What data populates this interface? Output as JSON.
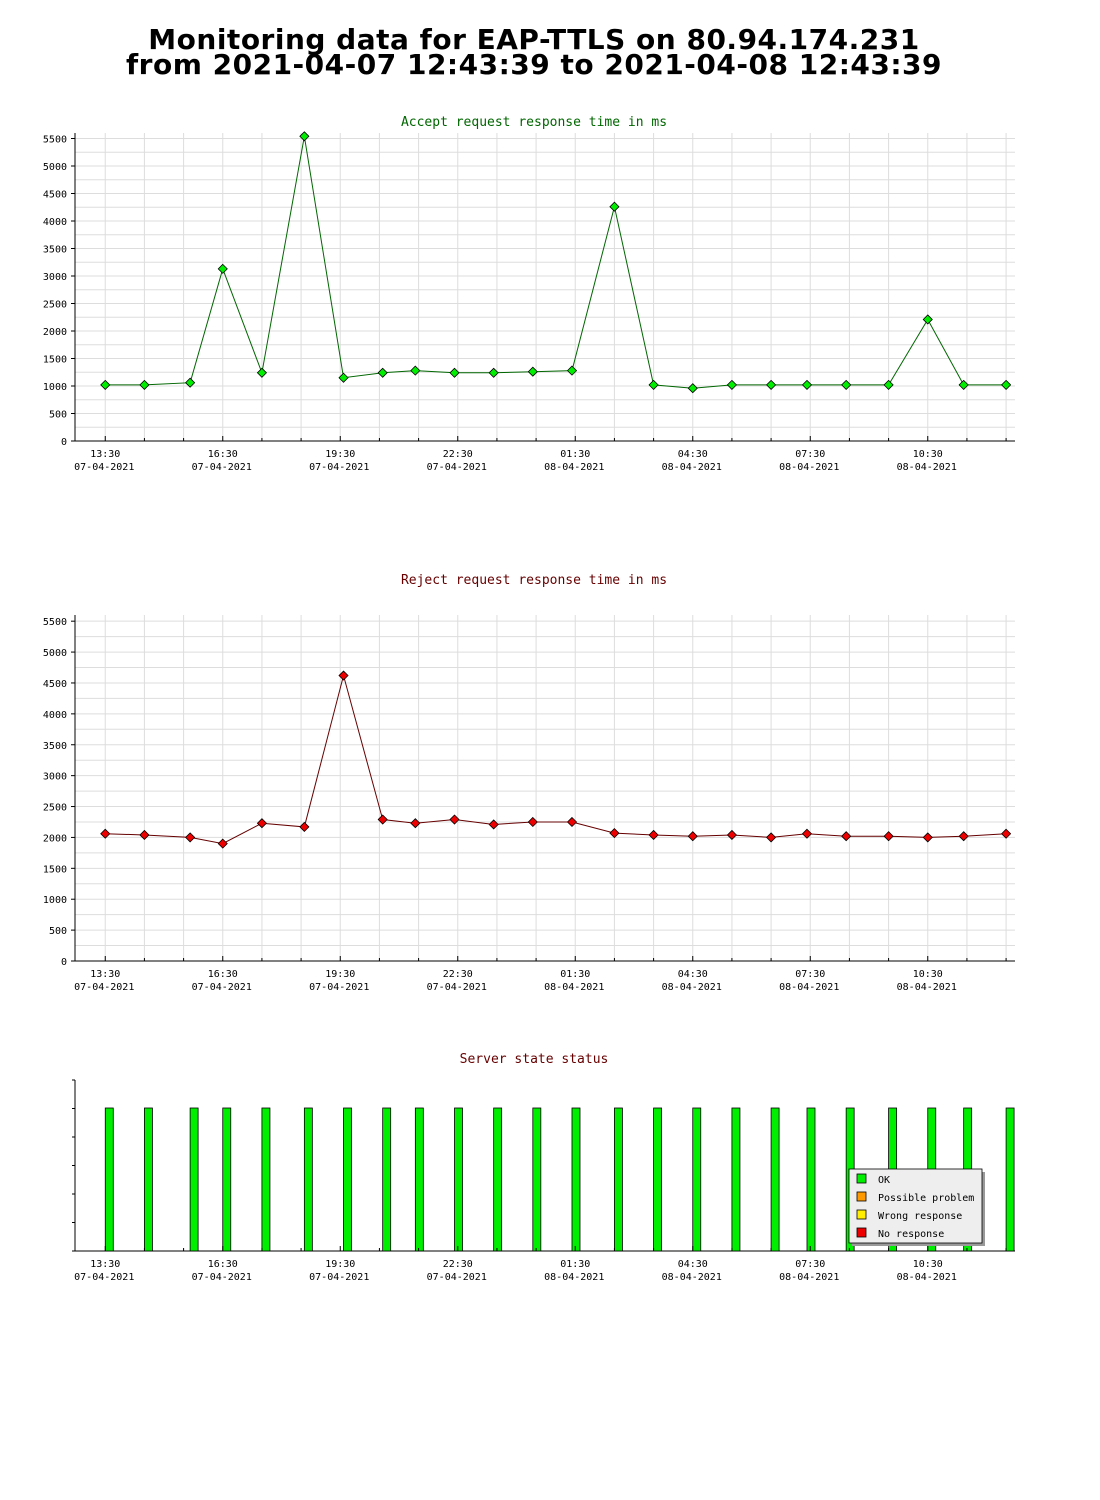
{
  "page": {
    "title_line_1": "Monitoring data for EAP-TTLS on 80.94.174.231",
    "title_line_2": "from 2021-04-07 12:43:39 to 2021-04-08 12:43:39"
  },
  "colors": {
    "accept_title": "#006600",
    "reject_title": "#660000",
    "status_title": "#660000",
    "accept_line": "#006600",
    "accept_marker": "#00ee00",
    "reject_line": "#660000",
    "reject_marker": "#ee0000",
    "grid": "#dddddd",
    "ok": "#00ee00",
    "possible_problem": "#ff9900",
    "wrong_response": "#ffee00",
    "no_response": "#ee0000"
  },
  "chart_data": [
    {
      "type": "line",
      "title": "Accept request response time in ms",
      "ylim": [
        0,
        5600
      ],
      "y_ticks": [
        0,
        500,
        1000,
        1500,
        2000,
        2500,
        3000,
        3500,
        4000,
        4500,
        5000,
        5500
      ],
      "x_ticks": [
        {
          "time": "13:30",
          "date": "07-04-2021"
        },
        {
          "time": "16:30",
          "date": "07-04-2021"
        },
        {
          "time": "19:30",
          "date": "07-04-2021"
        },
        {
          "time": "22:30",
          "date": "07-04-2021"
        },
        {
          "time": "01:30",
          "date": "08-04-2021"
        },
        {
          "time": "04:30",
          "date": "08-04-2021"
        },
        {
          "time": "07:30",
          "date": "08-04-2021"
        },
        {
          "time": "10:30",
          "date": "08-04-2021"
        }
      ],
      "grid": true,
      "x": [
        "2021-04-07 13:30",
        "2021-04-07 14:30",
        "2021-04-07 15:40",
        "2021-04-07 16:30",
        "2021-04-07 17:30",
        "2021-04-07 18:35",
        "2021-04-07 19:35",
        "2021-04-07 20:35",
        "2021-04-07 21:25",
        "2021-04-07 22:25",
        "2021-04-07 23:25",
        "2021-04-08 00:25",
        "2021-04-08 01:25",
        "2021-04-08 02:30",
        "2021-04-08 03:30",
        "2021-04-08 04:30",
        "2021-04-08 05:30",
        "2021-04-08 06:30",
        "2021-04-08 07:25",
        "2021-04-08 08:25",
        "2021-04-08 09:30",
        "2021-04-08 10:30",
        "2021-04-08 11:25",
        "2021-04-08 12:30"
      ],
      "values": [
        1020,
        1020,
        1060,
        3130,
        1240,
        5540,
        1150,
        1240,
        1280,
        1240,
        1240,
        1260,
        1280,
        4260,
        1020,
        960,
        1020,
        1020,
        1020,
        1020,
        1020,
        2210,
        1020,
        1020
      ]
    },
    {
      "type": "line",
      "title": "Reject request response time in ms",
      "ylim": [
        0,
        5600
      ],
      "y_ticks": [
        0,
        500,
        1000,
        1500,
        2000,
        2500,
        3000,
        3500,
        4000,
        4500,
        5000,
        5500
      ],
      "x_ticks": [
        {
          "time": "13:30",
          "date": "07-04-2021"
        },
        {
          "time": "16:30",
          "date": "07-04-2021"
        },
        {
          "time": "19:30",
          "date": "07-04-2021"
        },
        {
          "time": "22:30",
          "date": "07-04-2021"
        },
        {
          "time": "01:30",
          "date": "08-04-2021"
        },
        {
          "time": "04:30",
          "date": "08-04-2021"
        },
        {
          "time": "07:30",
          "date": "08-04-2021"
        },
        {
          "time": "10:30",
          "date": "08-04-2021"
        }
      ],
      "grid": true,
      "x": [
        "2021-04-07 13:30",
        "2021-04-07 14:30",
        "2021-04-07 15:40",
        "2021-04-07 16:30",
        "2021-04-07 17:30",
        "2021-04-07 18:35",
        "2021-04-07 19:35",
        "2021-04-07 20:35",
        "2021-04-07 21:25",
        "2021-04-07 22:25",
        "2021-04-07 23:25",
        "2021-04-08 00:25",
        "2021-04-08 01:25",
        "2021-04-08 02:30",
        "2021-04-08 03:30",
        "2021-04-08 04:30",
        "2021-04-08 05:30",
        "2021-04-08 06:30",
        "2021-04-08 07:25",
        "2021-04-08 08:25",
        "2021-04-08 09:30",
        "2021-04-08 10:30",
        "2021-04-08 11:25",
        "2021-04-08 12:30"
      ],
      "values": [
        2060,
        2040,
        2000,
        1900,
        2230,
        2170,
        4620,
        2290,
        2230,
        2290,
        2210,
        2250,
        2250,
        2070,
        2040,
        2020,
        2040,
        2000,
        2060,
        2020,
        2020,
        2000,
        2020,
        2060
      ]
    },
    {
      "type": "bar",
      "title": "Server state status",
      "x_ticks": [
        {
          "time": "13:30",
          "date": "07-04-2021"
        },
        {
          "time": "16:30",
          "date": "07-04-2021"
        },
        {
          "time": "19:30",
          "date": "07-04-2021"
        },
        {
          "time": "22:30",
          "date": "07-04-2021"
        },
        {
          "time": "01:30",
          "date": "08-04-2021"
        },
        {
          "time": "04:30",
          "date": "08-04-2021"
        },
        {
          "time": "07:30",
          "date": "08-04-2021"
        },
        {
          "time": "10:30",
          "date": "08-04-2021"
        }
      ],
      "x": [
        "2021-04-07 13:30",
        "2021-04-07 14:30",
        "2021-04-07 15:40",
        "2021-04-07 16:30",
        "2021-04-07 17:30",
        "2021-04-07 18:35",
        "2021-04-07 19:35",
        "2021-04-07 20:35",
        "2021-04-07 21:25",
        "2021-04-07 22:25",
        "2021-04-07 23:25",
        "2021-04-08 00:25",
        "2021-04-08 01:25",
        "2021-04-08 02:30",
        "2021-04-08 03:30",
        "2021-04-08 04:30",
        "2021-04-08 05:30",
        "2021-04-08 06:30",
        "2021-04-08 07:25",
        "2021-04-08 08:25",
        "2021-04-08 09:30",
        "2021-04-08 10:30",
        "2021-04-08 11:25",
        "2021-04-08 12:30"
      ],
      "status": [
        "OK",
        "OK",
        "OK",
        "OK",
        "OK",
        "OK",
        "OK",
        "OK",
        "OK",
        "OK",
        "OK",
        "OK",
        "OK",
        "OK",
        "OK",
        "OK",
        "OK",
        "OK",
        "OK",
        "OK",
        "OK",
        "OK",
        "OK",
        "OK"
      ],
      "legend": [
        "OK",
        "Possible problem",
        "Wrong response",
        "No response"
      ],
      "legend_placement": "bottom-right"
    }
  ]
}
